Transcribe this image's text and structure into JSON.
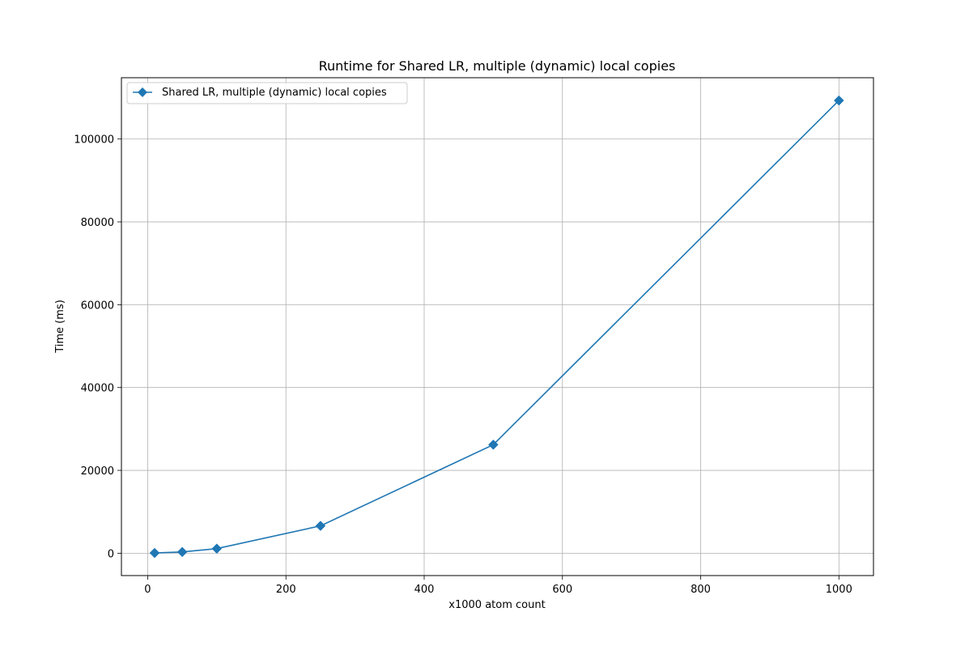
{
  "chart_data": {
    "type": "line",
    "title": "Runtime for Shared LR, multiple (dynamic) local copies",
    "xlabel": "x1000 atom count",
    "ylabel": "Time (ms)",
    "xlim": [
      -38,
      1050
    ],
    "ylim": [
      -5400,
      114800
    ],
    "xticks": [
      0,
      200,
      400,
      600,
      800,
      1000
    ],
    "yticks": [
      0,
      20000,
      40000,
      60000,
      80000,
      100000
    ],
    "grid": true,
    "legend_position": "top-left",
    "series": [
      {
        "name": "Shared LR, multiple (dynamic) local copies",
        "color": "#1f77b4",
        "marker": "diamond",
        "x": [
          10,
          50,
          100,
          250,
          500,
          1000
        ],
        "y": [
          50,
          300,
          1100,
          6600,
          26200,
          109300
        ]
      }
    ]
  }
}
